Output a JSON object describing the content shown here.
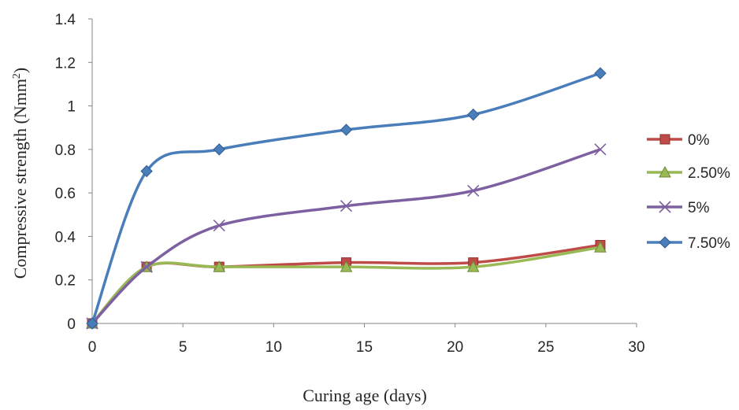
{
  "chart_data": {
    "type": "line",
    "title": "",
    "xlabel": "Curing age (days)",
    "ylabel": "Compressive strength (Nmm",
    "ylabel_sup": "2",
    "ylabel_close": ")",
    "xlim": [
      0,
      30
    ],
    "ylim": [
      0,
      1.4
    ],
    "xticks": [
      "0",
      "5",
      "10",
      "15",
      "20",
      "25",
      "30"
    ],
    "yticks": [
      "0",
      "0.2",
      "0.4",
      "0.6",
      "0.8",
      "1",
      "1.2",
      "1.4"
    ],
    "grid": false,
    "legend_position": "right",
    "x": [
      0,
      3,
      7,
      14,
      21,
      28
    ],
    "series": [
      {
        "name": "0%",
        "color": "#be4b48",
        "marker": "square",
        "values": [
          0,
          0.26,
          0.26,
          0.28,
          0.28,
          0.36
        ]
      },
      {
        "name": "2.50%",
        "color": "#98b954",
        "marker": "triangle",
        "values": [
          0,
          0.26,
          0.26,
          0.26,
          0.26,
          0.35
        ]
      },
      {
        "name": "5%",
        "color": "#7d60a0",
        "marker": "x",
        "values": [
          0,
          0.26,
          0.45,
          0.54,
          0.61,
          0.8
        ]
      },
      {
        "name": "7.50%",
        "color": "#4a7ebb",
        "marker": "diamond",
        "values": [
          0,
          0.7,
          0.8,
          0.89,
          0.96,
          1.15
        ]
      }
    ]
  }
}
